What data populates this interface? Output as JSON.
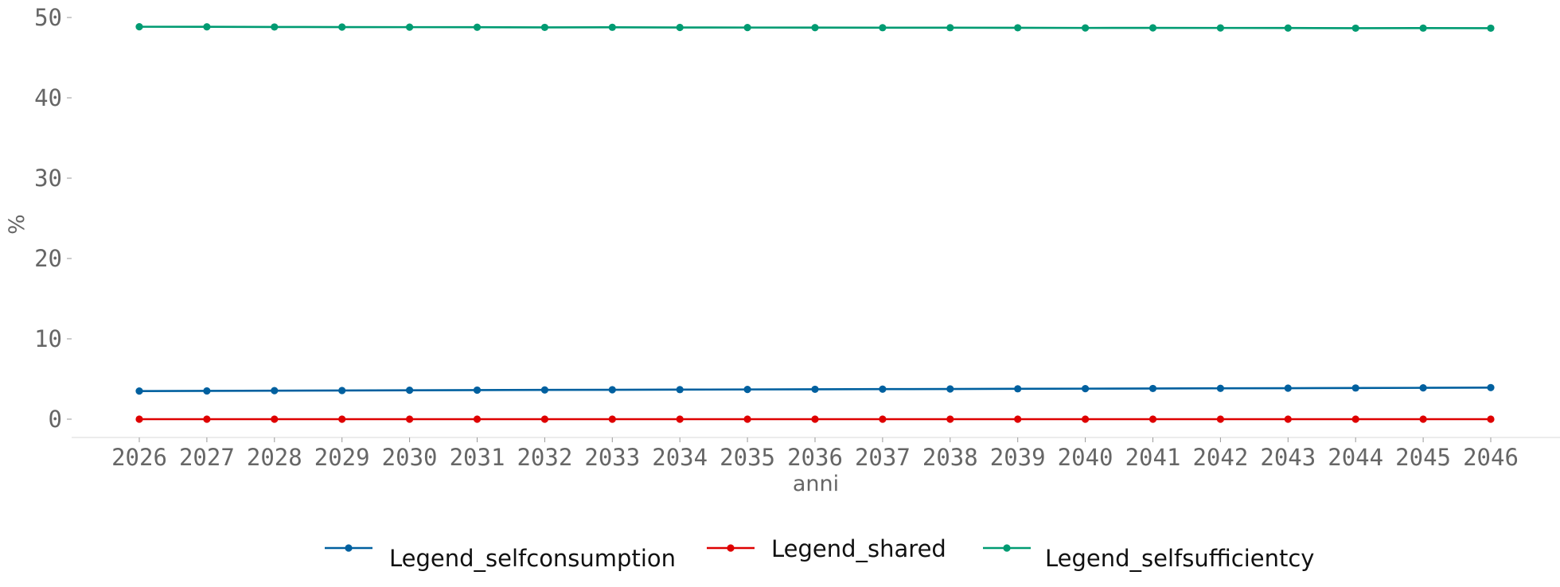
{
  "chart_data": {
    "type": "line",
    "xlabel": "anni",
    "ylabel": "%",
    "ylim": [
      -2.3,
      50
    ],
    "yticks": [
      0,
      10,
      20,
      30,
      40,
      50
    ],
    "grid": false,
    "legend_position": "bottom-center",
    "x": [
      "2026",
      "2027",
      "2028",
      "2029",
      "2030",
      "2031",
      "2032",
      "2033",
      "2034",
      "2035",
      "2036",
      "2037",
      "2038",
      "2039",
      "2040",
      "2041",
      "2042",
      "2043",
      "2044",
      "2045",
      "2046"
    ],
    "series": [
      {
        "name": "Legend_selfconsumption",
        "color": "#00609f",
        "values": [
          3.5,
          3.52,
          3.55,
          3.57,
          3.6,
          3.62,
          3.64,
          3.66,
          3.68,
          3.7,
          3.72,
          3.74,
          3.76,
          3.78,
          3.8,
          3.82,
          3.84,
          3.86,
          3.88,
          3.9,
          3.93
        ]
      },
      {
        "name": "Legend_shared",
        "color": "#de0000",
        "values": [
          0,
          0,
          0,
          0,
          0,
          0,
          0,
          0,
          0,
          0,
          0,
          0,
          0,
          0,
          0,
          0,
          0,
          0,
          0,
          0,
          0
        ]
      },
      {
        "name": "Legend_selfsufficientcy",
        "color": "#009b72",
        "values": [
          48.85,
          48.84,
          48.82,
          48.81,
          48.8,
          48.79,
          48.77,
          48.78,
          48.76,
          48.75,
          48.74,
          48.73,
          48.73,
          48.72,
          48.7,
          48.71,
          48.7,
          48.69,
          48.67,
          48.68,
          48.67
        ]
      }
    ]
  }
}
